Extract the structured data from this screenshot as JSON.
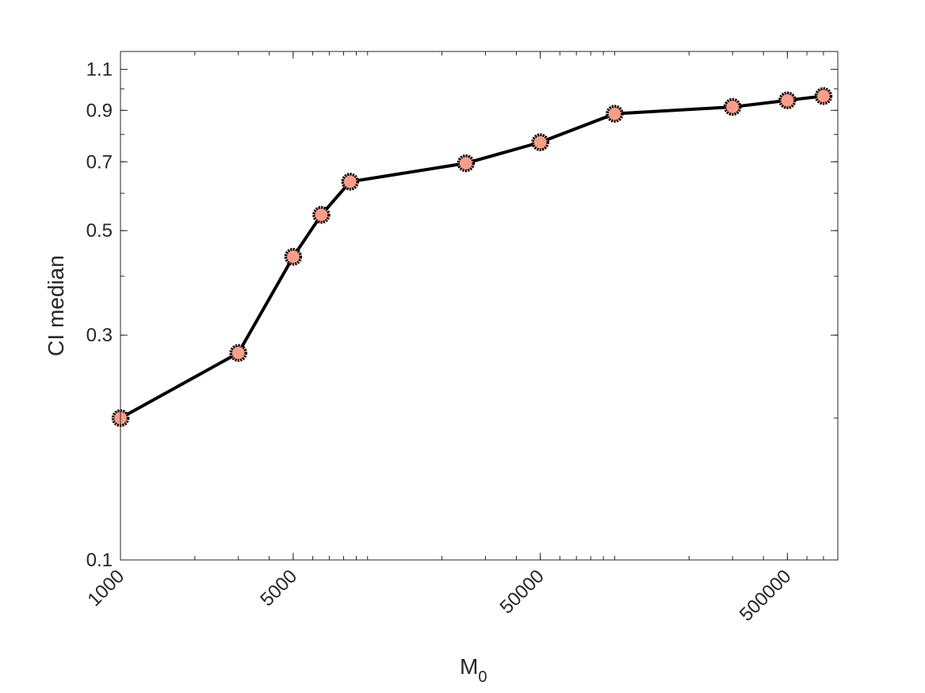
{
  "chart_data": {
    "type": "line",
    "xlabel": "M",
    "xlabel_subscript": "0",
    "ylabel": "CI median",
    "xscale": "log",
    "yscale": "log",
    "xlim": [
      1000,
      800000
    ],
    "ylim": [
      0.1,
      1.2
    ],
    "x_ticks": [
      1000,
      5000,
      50000,
      500000
    ],
    "x_tick_labels": [
      "1000",
      "5000",
      "50000",
      "500000"
    ],
    "y_ticks": [
      0.1,
      0.3,
      0.5,
      0.7,
      0.9,
      1.1
    ],
    "y_tick_labels": [
      "0.1",
      "0.3",
      "0.5",
      "0.7",
      "0.9",
      "1.1"
    ],
    "grid": false,
    "line_color": "#000000",
    "marker_face": "#fa9e8a",
    "marker_edge": "#000000",
    "series": [
      {
        "x": [
          1000,
          3000,
          5000,
          6500,
          8500,
          25000,
          50000,
          100000,
          300000,
          500000,
          700000
        ],
        "values": [
          0.2,
          0.275,
          0.44,
          0.54,
          0.635,
          0.695,
          0.77,
          0.885,
          0.915,
          0.945,
          0.965
        ]
      }
    ]
  }
}
